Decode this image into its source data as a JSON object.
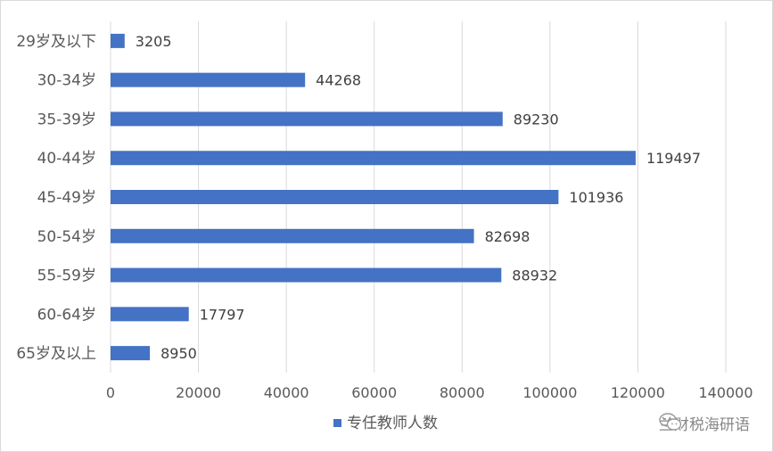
{
  "chart_data": {
    "type": "bar",
    "orientation": "horizontal",
    "categories": [
      "29岁及以下",
      "30-34岁",
      "35-39岁",
      "40-44岁",
      "45-49岁",
      "50-54岁",
      "55-59岁",
      "60-64岁",
      "65岁及以上"
    ],
    "series": [
      {
        "name": "专任教师人数",
        "values": [
          3205,
          44268,
          89230,
          119497,
          101936,
          82698,
          88932,
          17797,
          8950
        ],
        "color": "#4472C4"
      }
    ],
    "xlim": [
      0,
      140000
    ],
    "xticks": [
      0,
      20000,
      40000,
      60000,
      80000,
      100000,
      120000,
      140000
    ],
    "grid": true,
    "legend_position": "bottom",
    "data_labels": true
  },
  "watermark": {
    "text": "兰财税海研语",
    "icon": "wechat-icon"
  }
}
